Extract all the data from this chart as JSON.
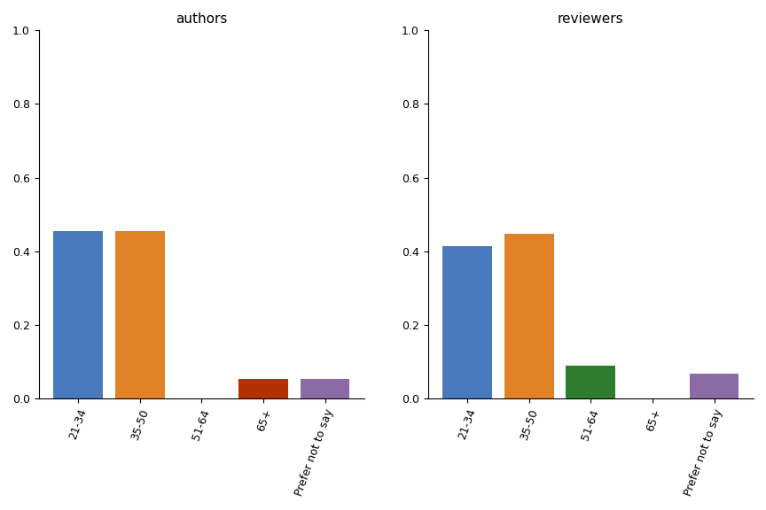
{
  "categories": [
    "21-34",
    "35-50",
    "51-64",
    "65+",
    "Prefer not to say"
  ],
  "authors_values": [
    0.454545,
    0.454545,
    0.0,
    0.0545455,
    0.0545455
  ],
  "reviewers_values": [
    0.413793,
    0.448276,
    0.0896552,
    0.0,
    0.0689655
  ],
  "authors_colors": [
    "#4878be",
    "#de8127",
    "#cccccc",
    "#b33000",
    "#8c6aa6"
  ],
  "reviewers_colors": [
    "#4878be",
    "#de8127",
    "#2e7d2e",
    "#cccccc",
    "#8c6aa6"
  ],
  "authors_title": "authors",
  "reviewers_title": "reviewers",
  "ylim": [
    0,
    1.0
  ],
  "yticks": [
    0.0,
    0.2,
    0.4,
    0.6,
    0.8,
    1.0
  ],
  "title_fontsize": 11,
  "tick_fontsize": 9,
  "figsize": [
    8.64,
    5.76
  ],
  "dpi": 100
}
